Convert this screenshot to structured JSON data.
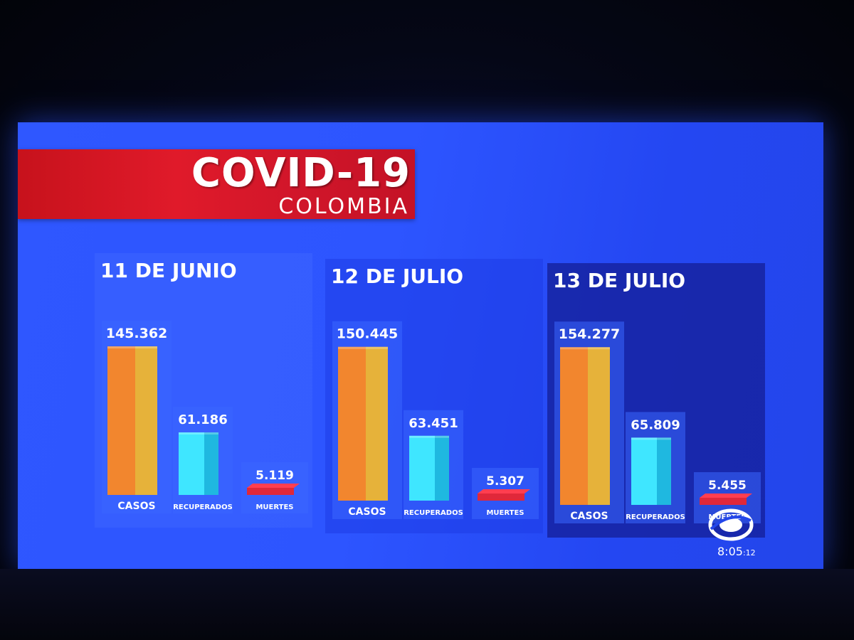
{
  "title": "COVID-19",
  "subtitle": "COLOMBIA",
  "colors": {
    "casos_front": "#f2862e",
    "casos_side": "#e6b23a",
    "recuperados_front": "#3fe6ff",
    "recuperados_side": "#1fb8e0",
    "muertes_front": "#e0283a",
    "muertes_top": "#ff3e50",
    "label_box": "#3b66ff",
    "title_band": "#d8182a"
  },
  "chart_data": [
    {
      "type": "bar",
      "title": "11 DE JUNIO",
      "categories": [
        "CASOS",
        "RECUPERADOS",
        "MUERTES"
      ],
      "values": [
        145362,
        61186,
        5119
      ],
      "value_labels": [
        "145.362",
        "61.186",
        "5.119"
      ]
    },
    {
      "type": "bar",
      "title": "12 DE JULIO",
      "categories": [
        "CASOS",
        "RECUPERADOS",
        "MUERTES"
      ],
      "values": [
        150445,
        63451,
        5307
      ],
      "value_labels": [
        "150.445",
        "63.451",
        "5.307"
      ]
    },
    {
      "type": "bar",
      "title": "13 DE JULIO",
      "categories": [
        "CASOS",
        "RECUPERADOS",
        "MUERTES"
      ],
      "values": [
        154277,
        65809,
        5455
      ],
      "value_labels": [
        "154.277",
        "65.809",
        "5.455"
      ]
    }
  ],
  "clock": {
    "time": "8:05",
    "seconds": ":12"
  }
}
